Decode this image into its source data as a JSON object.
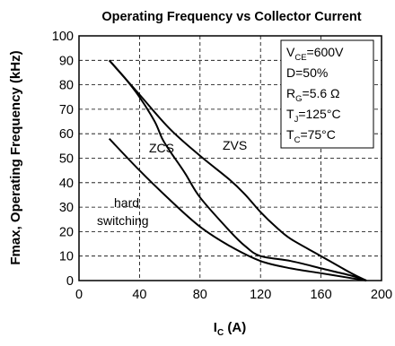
{
  "chart_data": {
    "type": "line",
    "title": "Operating Frequency vs Collector Current",
    "xlabel": {
      "main": "I",
      "sub": "C",
      "tail": " (A)"
    },
    "ylabel": "Fmax, Operating Frequency (kHz)",
    "xlim": [
      0,
      200
    ],
    "ylim": [
      0,
      100
    ],
    "xticks": [
      0,
      40,
      80,
      120,
      160,
      200
    ],
    "yticks": [
      0,
      10,
      20,
      30,
      40,
      50,
      60,
      70,
      80,
      90,
      100
    ],
    "grid": true,
    "series": [
      {
        "key": "zvs",
        "x": [
          20,
          40,
          60,
          80,
          100,
          110,
          120,
          130,
          140,
          160,
          180,
          190
        ],
        "y": [
          90,
          76,
          62,
          51,
          41,
          35,
          28,
          22,
          17,
          10,
          3,
          0
        ]
      },
      {
        "key": "zcs",
        "x": [
          20,
          30,
          40,
          50,
          55,
          60,
          70,
          80,
          100,
          110,
          120,
          140,
          160,
          180,
          190
        ],
        "y": [
          90,
          83,
          75,
          65,
          58,
          53,
          44,
          34,
          20,
          14,
          10,
          8,
          5,
          2,
          0
        ]
      },
      {
        "key": "hard",
        "x": [
          20,
          40,
          60,
          80,
          100,
          120,
          140,
          160,
          180,
          190
        ],
        "y": [
          58,
          45,
          33,
          22,
          14,
          8,
          5,
          3,
          1,
          0
        ]
      }
    ],
    "annotations": {
      "zvs": "ZVS",
      "zcs": "ZCS",
      "hard_line1": "hard",
      "hard_line2": "switching"
    },
    "conditions": [
      {
        "main": "V",
        "sub": "CE",
        "tail": "=600V"
      },
      {
        "main": "D=50%",
        "sub": "",
        "tail": ""
      },
      {
        "main": "R",
        "sub": "G",
        "tail": "=5.6 Ω"
      },
      {
        "main": "T",
        "sub": "J",
        "tail": "=125°C"
      },
      {
        "main": "T",
        "sub": "C",
        "tail": "=75°C"
      }
    ],
    "legend_position": "top-right"
  }
}
